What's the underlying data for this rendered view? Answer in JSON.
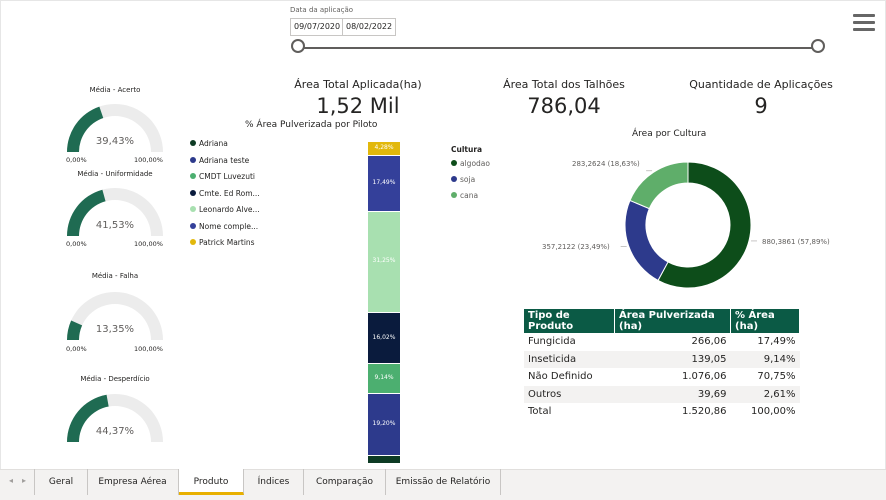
{
  "slicer": {
    "label": "Data da aplicação",
    "start_date": "09/07/2020",
    "end_date": "08/02/2022",
    "range_start": 0.0,
    "range_end": 1.0
  },
  "kpis": [
    {
      "title": "Área Total Aplicada(ha)",
      "value": "1,52 Mil"
    },
    {
      "title": "Área Total dos Talhões",
      "value": "786,04"
    },
    {
      "title": "Quantidade de Aplicações",
      "value": "9"
    }
  ],
  "gauges": [
    {
      "title": "Média - Acerto",
      "value": "39,43%",
      "fraction": 0.3943,
      "min": "0,00%",
      "max": "100,00%"
    },
    {
      "title": "Média - Uniformidade",
      "value": "41,53%",
      "fraction": 0.4153,
      "min": "0,00%",
      "max": "100,00%"
    },
    {
      "title": "Média - Falha",
      "value": "13,35%",
      "fraction": 0.1335,
      "min": "0,00%",
      "max": "100,00%"
    },
    {
      "title": "Média - Desperdício",
      "value": "44,37%",
      "fraction": 0.4437,
      "min": "0,00%",
      "max": "100,00%"
    }
  ],
  "colors": {
    "gauge_fill": "#1f6b52",
    "gauge_track": "#ececec",
    "header": "#0b5a45",
    "tab_active": "#e8b000"
  },
  "bar_chart": {
    "title": "% Área Pulverizada por Piloto",
    "legend": [
      {
        "label": "Adriana",
        "color": "#0d3b24"
      },
      {
        "label": "Adriana teste",
        "color": "#2d3a8c"
      },
      {
        "label": "CMDT Luvezuti",
        "color": "#4caf70"
      },
      {
        "label": "Cmte. Ed Rom...",
        "color": "#0a1b3d"
      },
      {
        "label": "Leonardo Alve...",
        "color": "#a8e0b0"
      },
      {
        "label": "Nome comple...",
        "color": "#34409a"
      },
      {
        "label": "Patrick Martins",
        "color": "#e2b80c"
      }
    ]
  },
  "chart_data": [
    {
      "type": "bar",
      "title": "% Área Pulverizada por Piloto",
      "stacked": true,
      "series": [
        {
          "name": "Patrick Martins",
          "value": 4.28,
          "label": "4,28%",
          "color": "#e2b80c"
        },
        {
          "name": "Nome comple...",
          "value": 17.49,
          "label": "17,49%",
          "color": "#34409a"
        },
        {
          "name": "Leonardo Alve...",
          "value": 31.25,
          "label": "31,25%",
          "color": "#a8e0b0"
        },
        {
          "name": "Cmte. Ed Rom...",
          "value": 16.02,
          "label": "16,02%",
          "color": "#0a1b3d"
        },
        {
          "name": "CMDT Luvezuti",
          "value": 9.14,
          "label": "9,14%",
          "color": "#4caf70"
        },
        {
          "name": "Adriana teste",
          "value": 19.2,
          "label": "19,20%",
          "color": "#2d3a8c"
        },
        {
          "name": "Adriana",
          "value": 2.62,
          "label": "",
          "color": "#0d3b24"
        }
      ]
    },
    {
      "type": "pie",
      "title": "Área por Cultura",
      "legend_title": "Cultura",
      "slices": [
        {
          "name": "algodao",
          "value": 880.3861,
          "label": "880,3861 (57,89%)",
          "color": "#0d4d1a"
        },
        {
          "name": "soja",
          "value": 357.2122,
          "label": "357,2122 (23,49%)",
          "color": "#2d3a8c"
        },
        {
          "name": "cana",
          "value": 283.2624,
          "label": "283,2624 (18,63%)",
          "color": "#5fae6a"
        }
      ]
    }
  ],
  "table": {
    "headers": [
      "Tipo de Produto",
      "Área Pulverizada (ha)",
      "% Área (ha)"
    ],
    "rows": [
      [
        "Fungicida",
        "266,06",
        "17,49%"
      ],
      [
        "Inseticida",
        "139,05",
        "9,14%"
      ],
      [
        "Não Definido",
        "1.076,06",
        "70,75%"
      ],
      [
        "Outros",
        "39,69",
        "2,61%"
      ]
    ],
    "total": [
      "Total",
      "1.520,86",
      "100,00%"
    ]
  },
  "tabs": [
    {
      "label": "Geral"
    },
    {
      "label": "Empresa Aérea"
    },
    {
      "label": "Produto"
    },
    {
      "label": "Índices"
    },
    {
      "label": "Comparação"
    },
    {
      "label": "Emissão de Relatório"
    }
  ],
  "nav": {
    "prev": "◂",
    "next": "▸"
  }
}
